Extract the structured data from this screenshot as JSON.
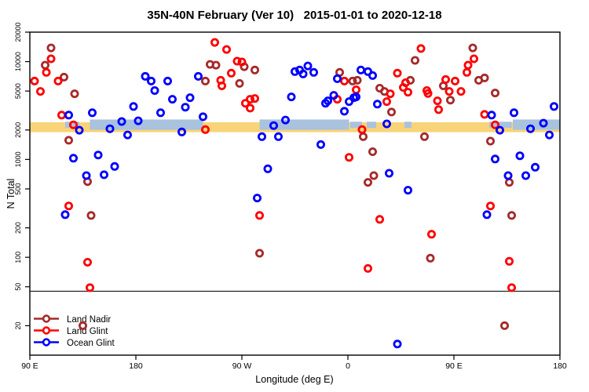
{
  "title": "35N-40N February (Ver 10)   2015-01-01 to 2020-12-18",
  "axes": {
    "x": {
      "label": "Longitude (deg E)",
      "note": "longitude axis wraps: spans 450 deg from 90E eastward to 180",
      "range_extended_deg": [
        90,
        540
      ],
      "ticks": [
        {
          "pos": 90,
          "label": "90 E"
        },
        {
          "pos": 180,
          "label": "180"
        },
        {
          "pos": 270,
          "label": "90 W"
        },
        {
          "pos": 360,
          "label": "0"
        },
        {
          "pos": 450,
          "label": "90 E"
        },
        {
          "pos": 540,
          "label": "180"
        }
      ]
    },
    "y": {
      "label": "N Total",
      "scale": "log",
      "range": [
        10,
        20000
      ],
      "ticks": [
        {
          "value": 20000,
          "label": "20000"
        },
        {
          "value": 10000,
          "label": "10000"
        },
        {
          "value": 5000,
          "label": "5000"
        },
        {
          "value": 2000,
          "label": "2000"
        },
        {
          "value": 1000,
          "label": "1000"
        },
        {
          "value": 500,
          "label": "500"
        },
        {
          "value": 200,
          "label": "200"
        },
        {
          "value": 100,
          "label": "100"
        },
        {
          "value": 50,
          "label": "50"
        },
        {
          "value": 20,
          "label": "20"
        }
      ]
    }
  },
  "reference_line": {
    "n": 45,
    "color": "#222222"
  },
  "band": {
    "description": "land/ocean indicator strip near N=2000-2500",
    "land_color": "#F8D478",
    "ocean_color": "#A9C2DE",
    "land_n_range": [
      1900,
      2400
    ],
    "ocean_n_range": [
      2010,
      2560
    ],
    "patch_n_range": [
      2100,
      2430
    ],
    "land_full_extent": [
      90,
      540
    ],
    "ocean_segments": [
      [
        141,
        237
      ],
      [
        285,
        361
      ],
      [
        500,
        540
      ]
    ],
    "ocean_patches": [
      [
        120,
        132
      ],
      [
        362,
        372
      ],
      [
        376,
        384
      ],
      [
        408,
        414
      ],
      [
        480,
        499
      ]
    ]
  },
  "legend": {
    "items": [
      {
        "label": "Land Nadir",
        "series": "Land Nadir"
      },
      {
        "label": "Land Glint",
        "series": "Land Glint"
      },
      {
        "label": "Ocean Glint",
        "series": "Ocean Glint"
      }
    ]
  },
  "chart_data": {
    "type": "scatter",
    "marker": "open-circle",
    "xlabel": "Longitude (deg E)",
    "ylabel": "N Total",
    "x_range": [
      90,
      540
    ],
    "y_range": [
      10,
      20000
    ],
    "y_scale": "log",
    "series": [
      {
        "name": "Land Nadir",
        "color": "#A52A2A",
        "points": [
          [
            108,
            13800
          ],
          [
            103,
            9200
          ],
          [
            119,
            6940
          ],
          [
            128,
            4690
          ],
          [
            123,
            1570
          ],
          [
            139,
            594
          ],
          [
            142,
            268
          ],
          [
            135,
            20
          ],
          [
            243,
            9370
          ],
          [
            248,
            9200
          ],
          [
            272,
            8860
          ],
          [
            281,
            8210
          ],
          [
            239,
            6320
          ],
          [
            268,
            5980
          ],
          [
            285,
            110
          ],
          [
            353,
            7760
          ],
          [
            364,
            6320
          ],
          [
            368,
            6440
          ],
          [
            387,
            5350
          ],
          [
            391,
            4960
          ],
          [
            397,
            3050
          ],
          [
            417,
            10300
          ],
          [
            413,
            6440
          ],
          [
            425,
            1710
          ],
          [
            373,
            1710
          ],
          [
            381,
            1200
          ],
          [
            382,
            684
          ],
          [
            377,
            583
          ],
          [
            430,
            98
          ],
          [
            466,
            13800
          ],
          [
            441,
            5650
          ],
          [
            447,
            4040
          ],
          [
            471,
            6440
          ],
          [
            476,
            6810
          ],
          [
            485,
            4780
          ],
          [
            481,
            1540
          ],
          [
            497,
            583
          ],
          [
            499,
            268
          ],
          [
            493,
            20
          ]
        ]
      },
      {
        "name": "Land Glint",
        "color": "#FF0000",
        "points": [
          [
            108,
            10680
          ],
          [
            104,
            7760
          ],
          [
            94,
            6320
          ],
          [
            114,
            6320
          ],
          [
            99,
            4960
          ],
          [
            117,
            2840
          ],
          [
            127,
            2260
          ],
          [
            123,
            335
          ],
          [
            139,
            89
          ],
          [
            141,
            49
          ],
          [
            247,
            15700
          ],
          [
            257,
            13300
          ],
          [
            266,
            10100
          ],
          [
            270,
            9920
          ],
          [
            261,
            7620
          ],
          [
            252,
            6440
          ],
          [
            253,
            5650
          ],
          [
            277,
            4120
          ],
          [
            281,
            4200
          ],
          [
            273,
            3750
          ],
          [
            277,
            3350
          ],
          [
            239,
            2020
          ],
          [
            285,
            268
          ],
          [
            357,
            6320
          ],
          [
            367,
            5150
          ],
          [
            351,
            4120
          ],
          [
            396,
            4690
          ],
          [
            393,
            3900
          ],
          [
            422,
            13600
          ],
          [
            402,
            7620
          ],
          [
            409,
            6090
          ],
          [
            407,
            5450
          ],
          [
            411,
            4870
          ],
          [
            427,
            5060
          ],
          [
            428,
            4730
          ],
          [
            372,
            2020
          ],
          [
            361,
            1050
          ],
          [
            387,
            244
          ],
          [
            377,
            77
          ],
          [
            431,
            172
          ],
          [
            467,
            10680
          ],
          [
            462,
            9200
          ],
          [
            461,
            7760
          ],
          [
            443,
            6560
          ],
          [
            451,
            6320
          ],
          [
            446,
            4960
          ],
          [
            456,
            4960
          ],
          [
            436,
            3970
          ],
          [
            437,
            3230
          ],
          [
            476,
            2890
          ],
          [
            485,
            2260
          ],
          [
            481,
            335
          ],
          [
            497,
            91
          ],
          [
            499,
            49
          ]
        ]
      },
      {
        "name": "Ocean Glint",
        "color": "#0000FF",
        "points": [
          [
            120,
            273
          ],
          [
            188,
            7070
          ],
          [
            193,
            6320
          ],
          [
            196,
            5060
          ],
          [
            178,
            3480
          ],
          [
            201,
            3000
          ],
          [
            123,
            2840
          ],
          [
            143,
            3000
          ],
          [
            132,
            1990
          ],
          [
            158,
            2060
          ],
          [
            168,
            2440
          ],
          [
            173,
            1780
          ],
          [
            182,
            2480
          ],
          [
            127,
            1030
          ],
          [
            148,
            1110
          ],
          [
            153,
            697
          ],
          [
            162,
            849
          ],
          [
            138,
            684
          ],
          [
            233,
            7070
          ],
          [
            207,
            6320
          ],
          [
            211,
            4120
          ],
          [
            226,
            4280
          ],
          [
            222,
            3420
          ],
          [
            237,
            2730
          ],
          [
            219,
            1910
          ],
          [
            297,
            2220
          ],
          [
            307,
            2530
          ],
          [
            312,
            4360
          ],
          [
            315,
            7910
          ],
          [
            287,
            1710
          ],
          [
            301,
            1710
          ],
          [
            292,
            803
          ],
          [
            283,
            403
          ],
          [
            319,
            8210
          ],
          [
            326,
            9030
          ],
          [
            331,
            7760
          ],
          [
            322,
            7480
          ],
          [
            351,
            6690
          ],
          [
            371,
            8210
          ],
          [
            377,
            7910
          ],
          [
            381,
            7200
          ],
          [
            367,
            4360
          ],
          [
            348,
            4520
          ],
          [
            343,
            3970
          ],
          [
            341,
            3750
          ],
          [
            361,
            3900
          ],
          [
            365,
            4280
          ],
          [
            357,
            3110
          ],
          [
            385,
            3680
          ],
          [
            393,
            2310
          ],
          [
            337,
            1420
          ],
          [
            395,
            722
          ],
          [
            411,
            485
          ],
          [
            402,
            13
          ],
          [
            482,
            2840
          ],
          [
            501,
            3000
          ],
          [
            489,
            1990
          ],
          [
            515,
            2060
          ],
          [
            526,
            2350
          ],
          [
            535,
            3480
          ],
          [
            531,
            1780
          ],
          [
            485,
            1010
          ],
          [
            506,
            1090
          ],
          [
            519,
            833
          ],
          [
            496,
            684
          ],
          [
            511,
            684
          ],
          [
            478,
            273
          ]
        ]
      }
    ]
  }
}
